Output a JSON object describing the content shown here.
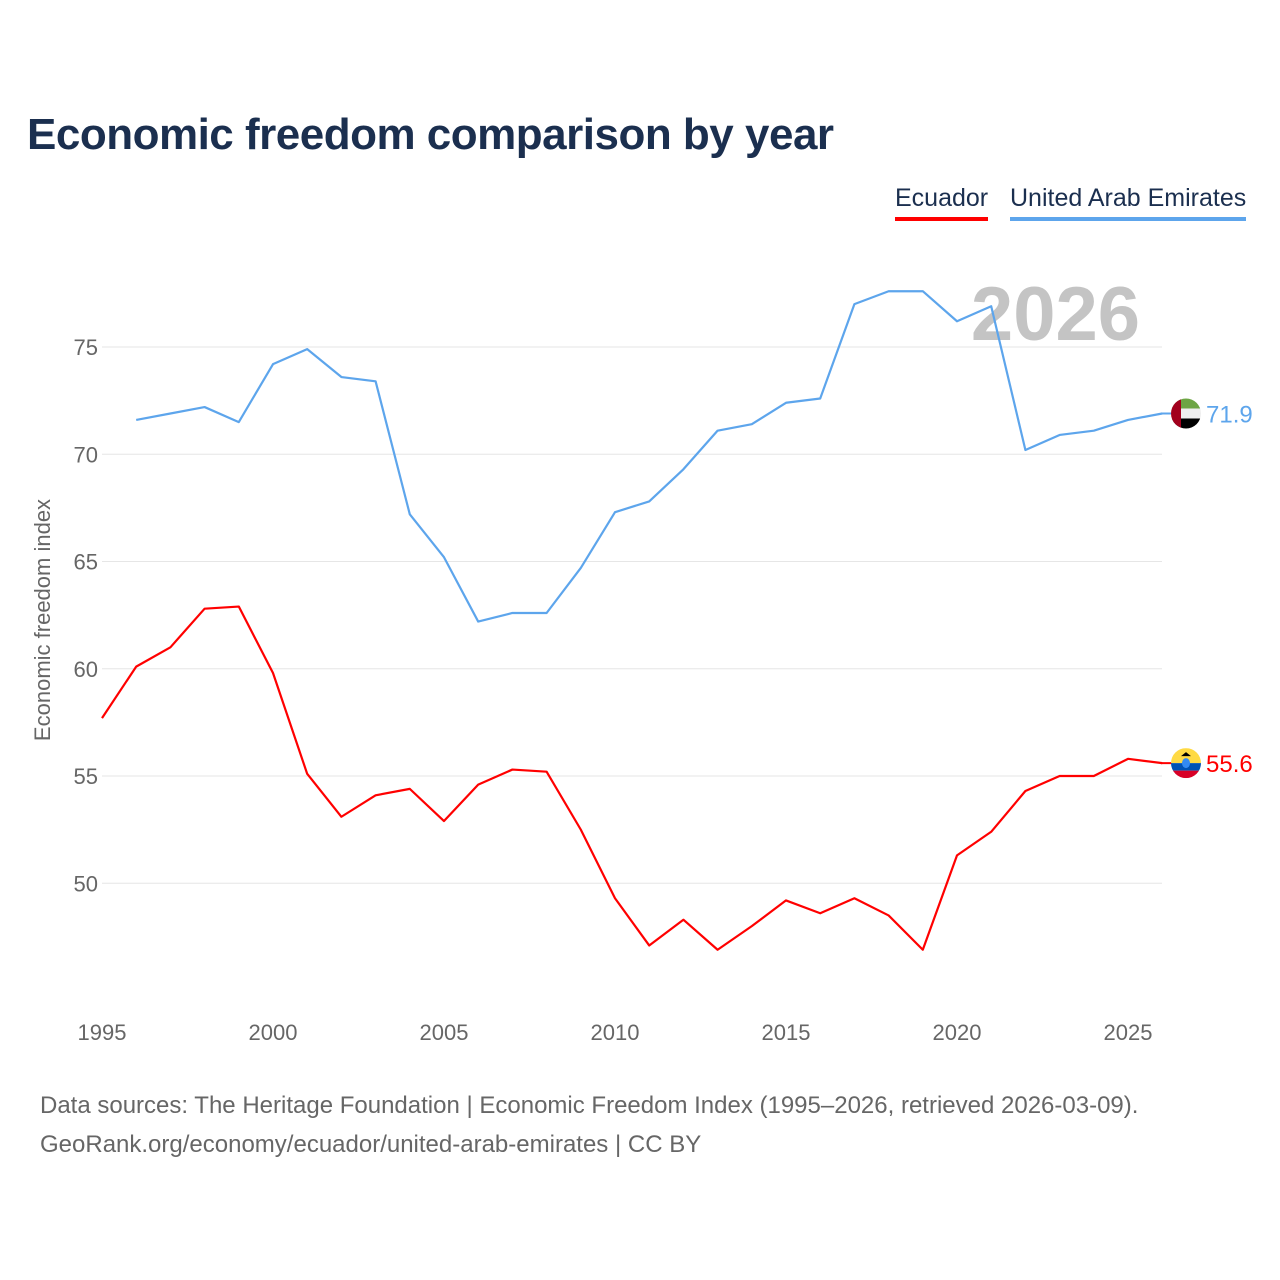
{
  "title": "Economic freedom comparison by year",
  "footer": {
    "line1": "Data sources: The Heritage Foundation | Economic Freedom Index (1995–2026, retrieved 2026-03-09).",
    "line2": "GeoRank.org/economy/ecuador/united-arab-emirates | CC BY"
  },
  "chart_data": {
    "type": "line",
    "title": "Economic freedom comparison by year",
    "xlabel": "",
    "ylabel": "Economic freedom index",
    "year_watermark": "2026",
    "xlim": [
      1995,
      2026
    ],
    "ylim": [
      44.5,
      79
    ],
    "xticks": [
      1995,
      2000,
      2005,
      2010,
      2015,
      2020,
      2025
    ],
    "yticks": [
      50,
      55,
      60,
      65,
      70,
      75
    ],
    "grid": true,
    "legend_position": "top-right",
    "series": [
      {
        "name": "Ecuador",
        "color": "#ff0000",
        "end_label": "55.6",
        "flag": "ecuador-flag",
        "x": [
          1995,
          1996,
          1997,
          1998,
          1999,
          2000,
          2001,
          2002,
          2003,
          2004,
          2005,
          2006,
          2007,
          2008,
          2009,
          2010,
          2011,
          2012,
          2013,
          2014,
          2015,
          2016,
          2017,
          2018,
          2019,
          2020,
          2021,
          2022,
          2023,
          2024,
          2025,
          2026
        ],
        "values": [
          57.7,
          60.1,
          61.0,
          62.8,
          62.9,
          59.8,
          55.1,
          53.1,
          54.1,
          54.4,
          52.9,
          54.6,
          55.3,
          55.2,
          52.5,
          49.3,
          47.1,
          48.3,
          46.9,
          48.0,
          49.2,
          48.6,
          49.3,
          48.5,
          46.9,
          51.3,
          52.4,
          54.3,
          55.0,
          55.0,
          55.8,
          55.6
        ]
      },
      {
        "name": "United Arab Emirates",
        "color": "#5da5ec",
        "end_label": "71.9",
        "flag": "uae-flag",
        "x": [
          1996,
          1997,
          1998,
          1999,
          2000,
          2001,
          2002,
          2003,
          2004,
          2005,
          2006,
          2007,
          2008,
          2009,
          2010,
          2011,
          2012,
          2013,
          2014,
          2015,
          2016,
          2017,
          2018,
          2019,
          2020,
          2021,
          2022,
          2023,
          2024,
          2025,
          2026
        ],
        "values": [
          71.6,
          71.9,
          72.2,
          71.5,
          74.2,
          74.9,
          73.6,
          73.4,
          67.2,
          65.2,
          62.2,
          62.6,
          62.6,
          64.7,
          67.3,
          67.8,
          69.3,
          71.1,
          71.4,
          72.4,
          72.6,
          77.0,
          77.6,
          77.6,
          76.2,
          76.9,
          70.2,
          70.9,
          71.1,
          71.6,
          71.9
        ]
      }
    ]
  }
}
